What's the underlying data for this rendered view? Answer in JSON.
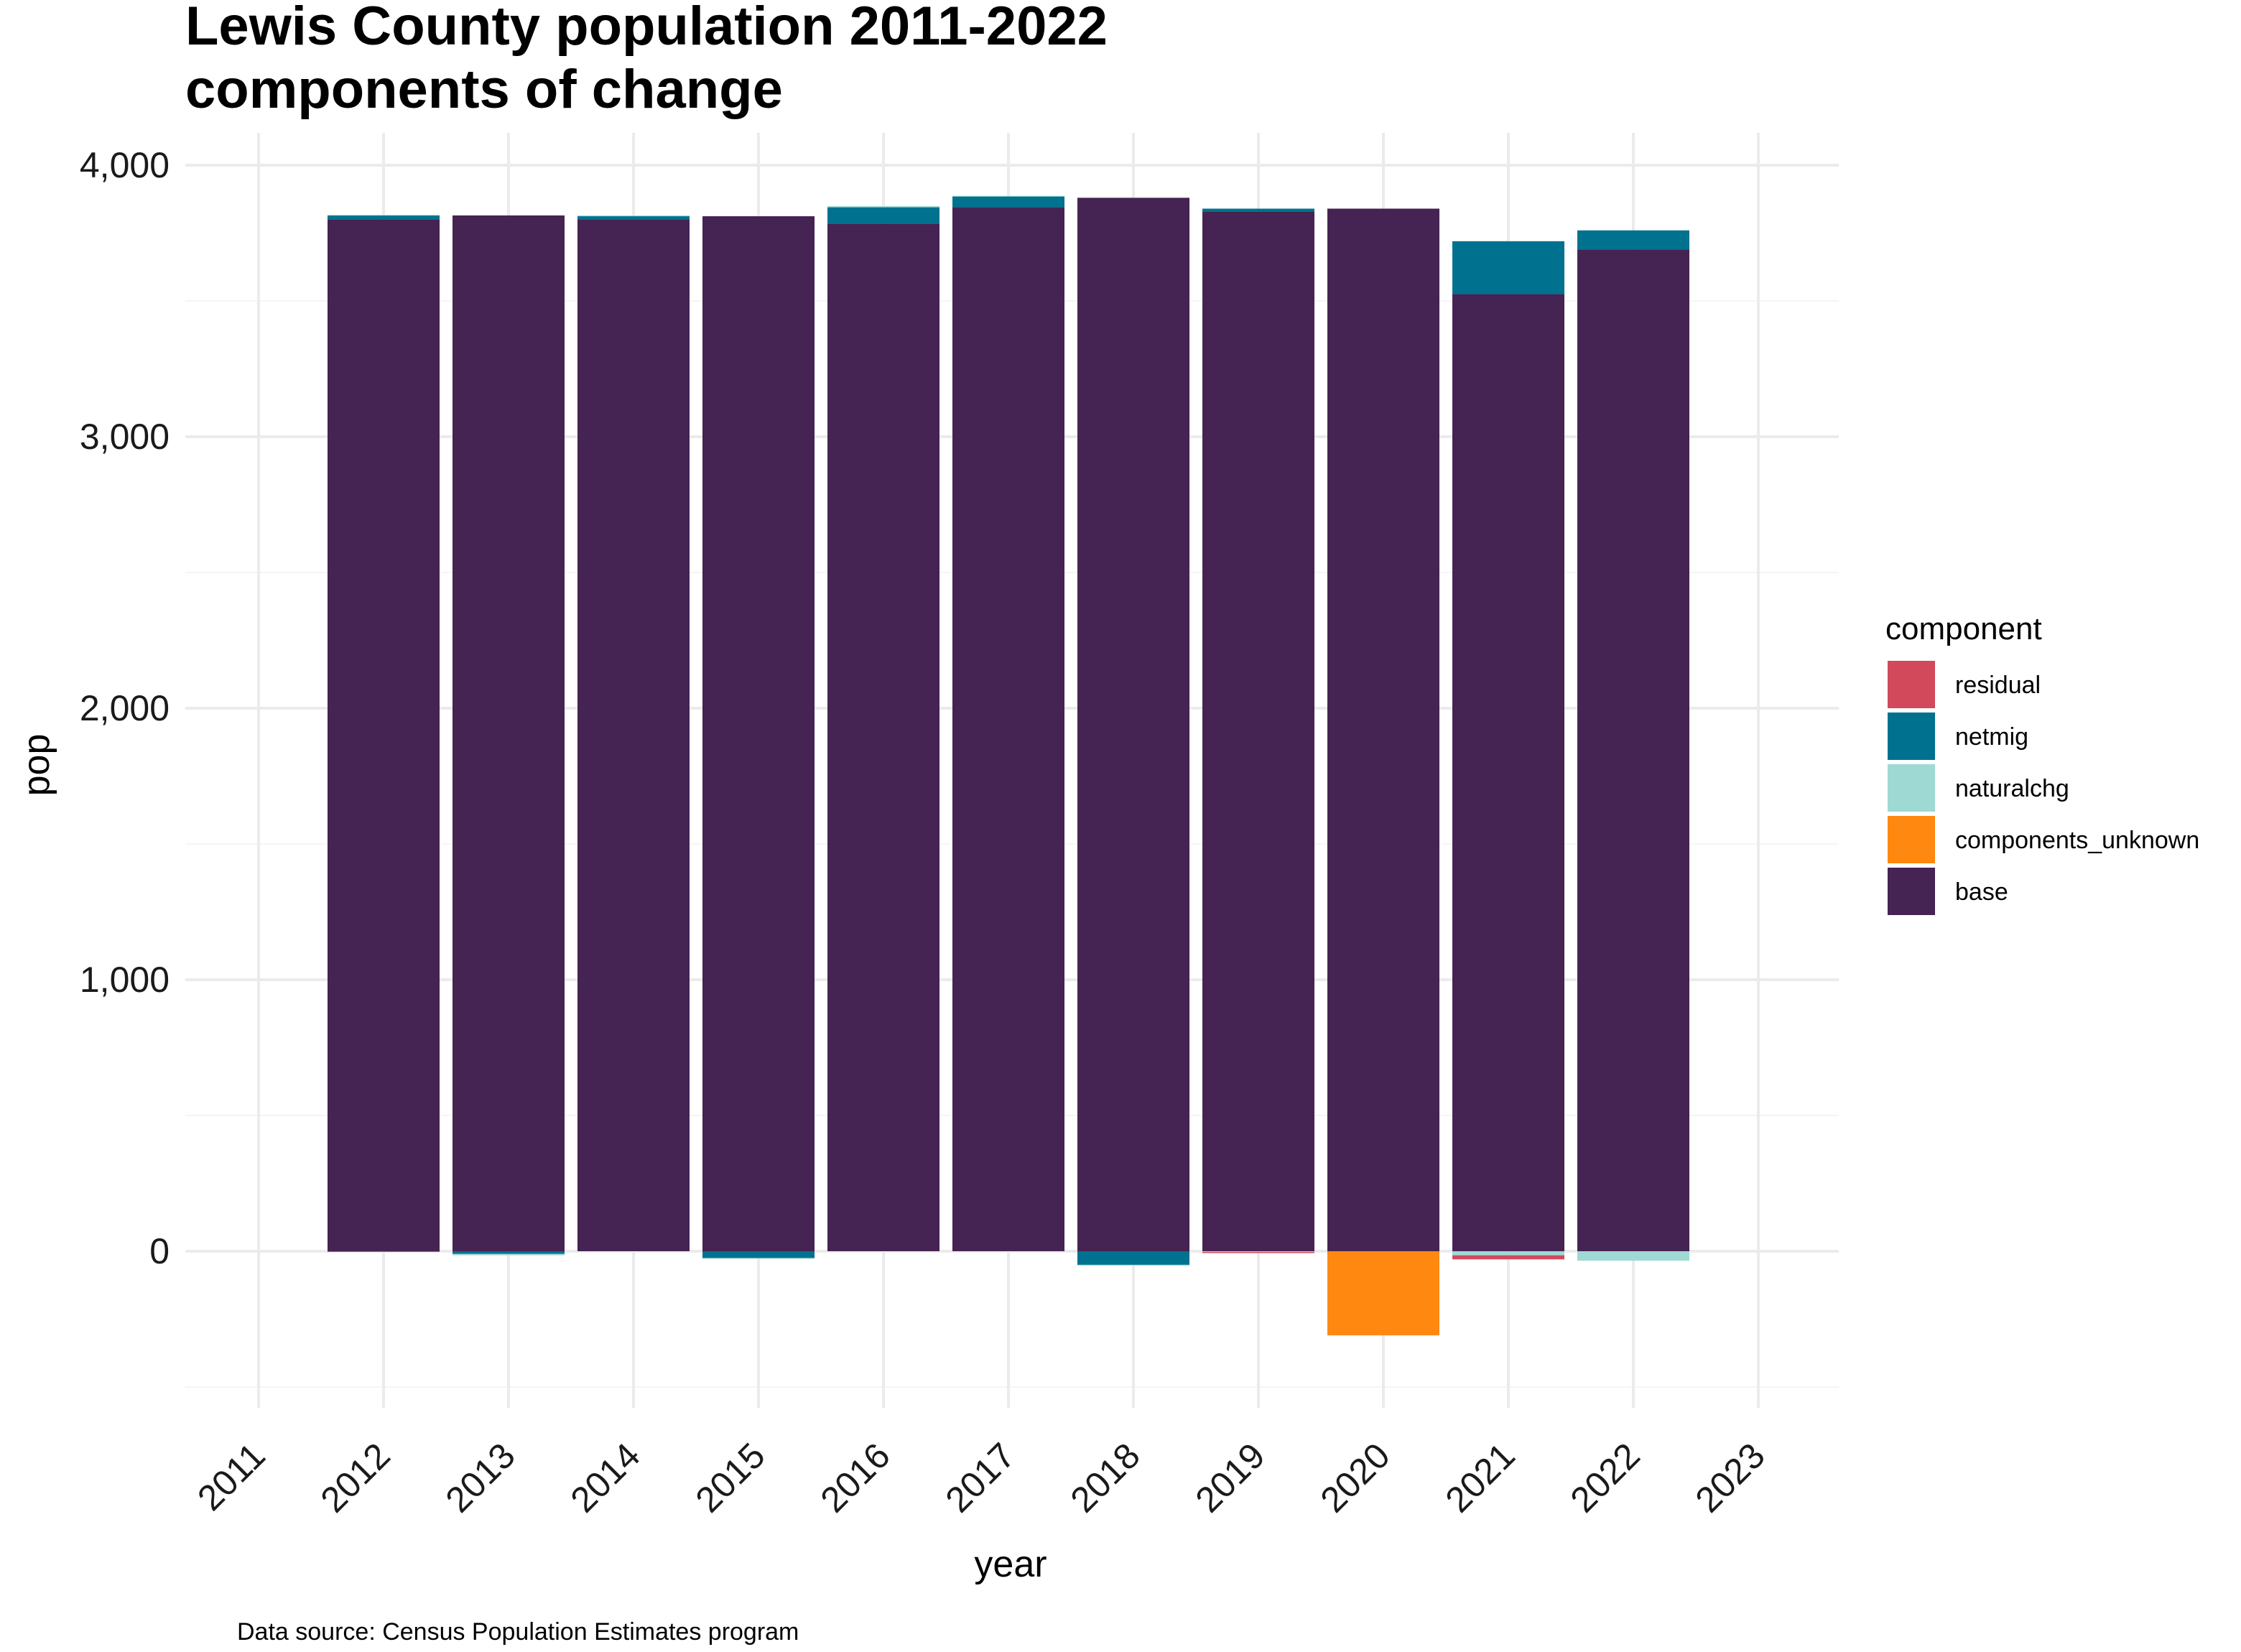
{
  "chart_data": {
    "type": "bar",
    "stacked": true,
    "title_line1": "Lewis County population 2011-2022",
    "title_line2": "components of change",
    "xlabel": "year",
    "ylabel": "pop",
    "caption": "Data source: Census Population Estimates program",
    "x_ticks": [
      "2011",
      "2012",
      "2013",
      "2014",
      "2015",
      "2016",
      "2017",
      "2018",
      "2019",
      "2020",
      "2021",
      "2022",
      "2023"
    ],
    "y_ticks": [
      {
        "value": 0,
        "label": "0"
      },
      {
        "value": 1000,
        "label": "1,000"
      },
      {
        "value": 2000,
        "label": "2,000"
      },
      {
        "value": 3000,
        "label": "3,000"
      },
      {
        "value": 4000,
        "label": "4,000"
      }
    ],
    "ylim": [
      -560,
      4100
    ],
    "grid": true,
    "legend": {
      "title": "component",
      "placement": "right",
      "entries": [
        {
          "key": "residual",
          "label": "residual",
          "color": "#d1495b"
        },
        {
          "key": "netmig",
          "label": "netmig",
          "color": "#00718f"
        },
        {
          "key": "naturalchg",
          "label": "naturalchg",
          "color": "#9ed9d3"
        },
        {
          "key": "components_unknown",
          "label": "components_unknown",
          "color": "#ff8811"
        },
        {
          "key": "base",
          "label": "base",
          "color": "#452352"
        }
      ]
    },
    "categories": [
      "2012",
      "2013",
      "2014",
      "2015",
      "2016",
      "2017",
      "2018",
      "2019",
      "2020",
      "2021",
      "2022"
    ],
    "series": [
      {
        "name": "base",
        "color": "#452352",
        "values": [
          3800,
          3815,
          3800,
          3812,
          3785,
          3845,
          3880,
          3830,
          3840,
          3525,
          3690
        ]
      },
      {
        "name": "netmig",
        "color": "#00718f",
        "values": [
          15,
          -10,
          12,
          -25,
          60,
          40,
          -50,
          10,
          0,
          195,
          70
        ]
      },
      {
        "name": "naturalchg",
        "color": "#9ed9d3",
        "values": [
          2,
          -5,
          3,
          -2,
          4,
          2,
          -3,
          -3,
          0,
          -15,
          -35
        ]
      },
      {
        "name": "components_unknown",
        "color": "#ff8811",
        "values": [
          0,
          0,
          0,
          0,
          0,
          0,
          0,
          0,
          -310,
          0,
          0
        ]
      },
      {
        "name": "residual",
        "color": "#d1495b",
        "values": [
          -2,
          0,
          0,
          0,
          0,
          0,
          0,
          -4,
          0,
          -15,
          0
        ]
      }
    ]
  }
}
